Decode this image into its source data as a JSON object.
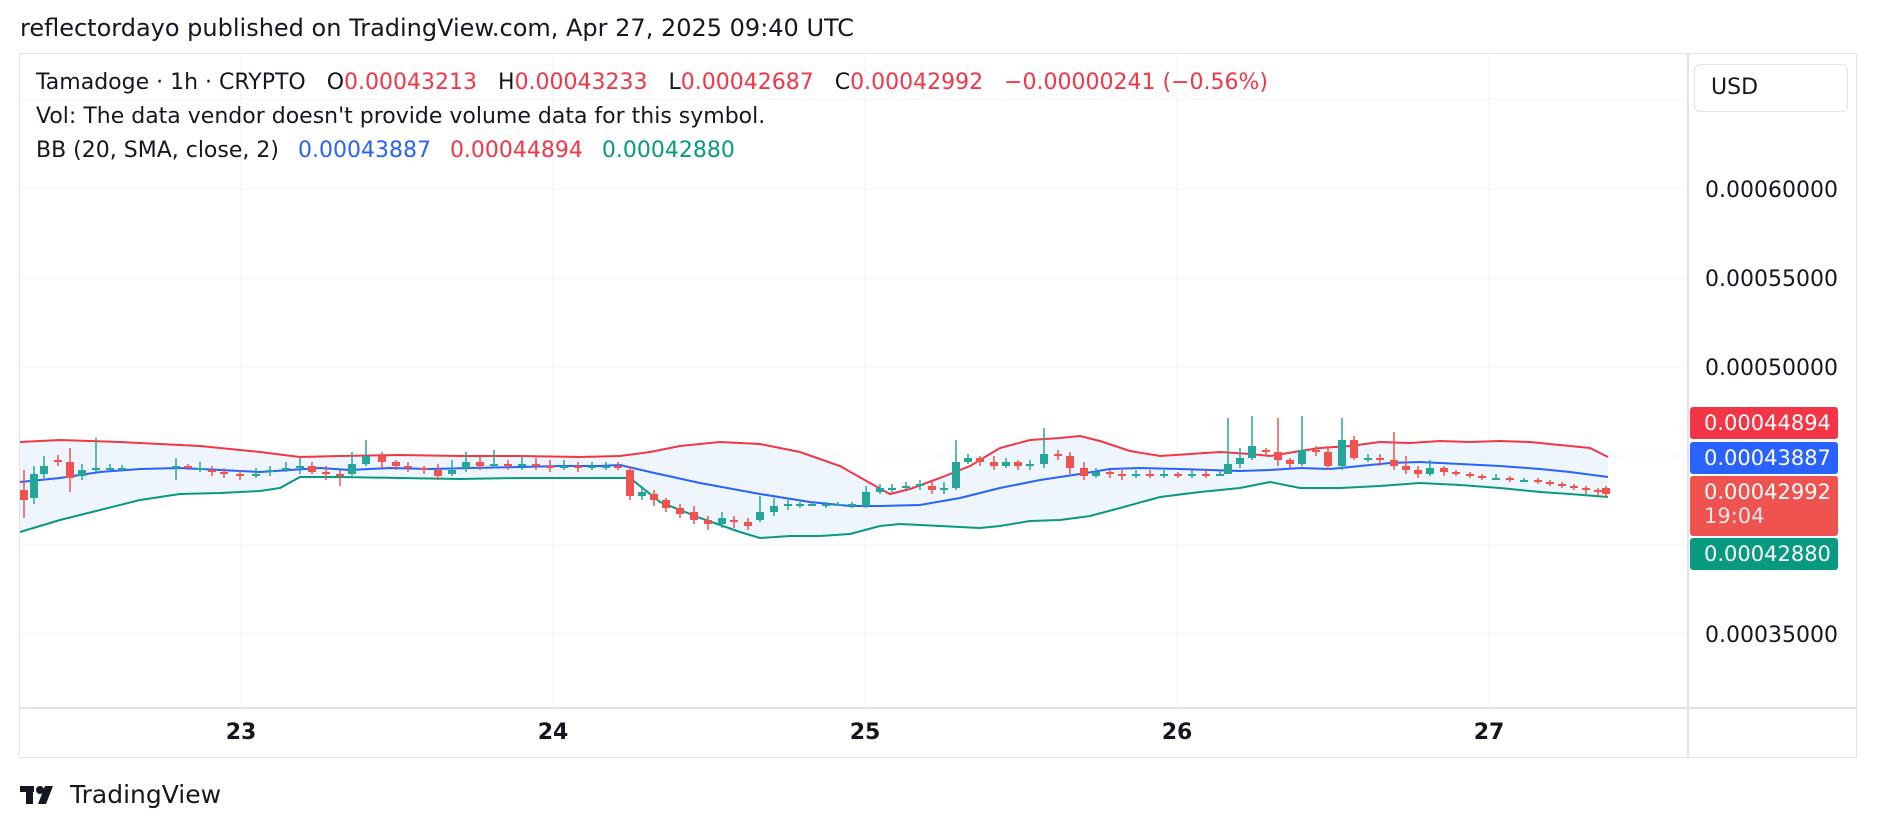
{
  "publisher_line": "reflectordayo published on TradingView.com, Apr 27, 2025 09:40 UTC",
  "legend": {
    "symbol": "Tamadoge · 1h · CRYPTO",
    "o_label": "O",
    "o_value": "0.00043213",
    "h_label": "H",
    "h_value": "0.00043233",
    "l_label": "L",
    "l_value": "0.00042687",
    "c_label": "C",
    "c_value": "0.00042992",
    "change": "−0.00000241 (−0.56%)",
    "vol_text": "Vol: The data vendor doesn't provide volume data for this symbol.",
    "bb_label": "BB (20, SMA, close, 2)",
    "bb_basis": "0.00043887",
    "bb_upper": "0.00044894",
    "bb_lower": "0.00042880"
  },
  "currency": "USD",
  "price_labels": {
    "upper": "0.00044894",
    "basis": "0.00043887",
    "last": "0.00042992",
    "countdown": "19:04",
    "lower": "0.00042880"
  },
  "brand": "TradingView",
  "colors": {
    "up": "#26a69a",
    "down": "#ef5350",
    "upper_band": "#f23645",
    "basis": "#2962ff",
    "lower_band": "#089981",
    "band_fill": "#e8f1fb"
  },
  "chart_data": {
    "type": "candlestick",
    "ylim": [
      0.00031,
      0.00068
    ],
    "y_ticks": [
      "0.00060000",
      "0.00055000",
      "0.00050000",
      "0.00035000"
    ],
    "x_ticks": [
      "23",
      "24",
      "25",
      "26",
      "27"
    ],
    "x_range_days": [
      22.3,
      27.65
    ],
    "candles": [
      [
        22.3,
        0.000425,
        0.000432,
        0.000421,
        0.00043
      ],
      [
        22.35,
        0.00043,
        0.000431,
        0.000421,
        0.000425
      ],
      [
        22.4,
        0.000424,
        0.000443,
        0.000421,
        0.000442
      ],
      [
        22.45,
        0.000442,
        0.000447,
        0.00044,
        0.000445
      ],
      [
        22.5,
        0.000445,
        0.000446,
        0.00044,
        0.000441
      ],
      [
        22.55,
        0.000441,
        0.000444,
        0.000434,
        0.000435
      ],
      [
        22.6,
        0.000435,
        0.000445,
        0.000435,
        0.000444
      ],
      [
        22.65,
        0.000444,
        0.000451,
        0.00044,
        0.000442
      ],
      [
        22.7,
        0.000442,
        0.000443,
        0.000439,
        0.00044
      ],
      [
        22.75,
        0.00044,
        0.000442,
        0.000438,
        0.000441
      ],
      [
        22.8,
        0.000441,
        0.000442,
        0.000439,
        0.00044
      ],
      [
        22.85,
        0.00044,
        0.000441,
        0.000438,
        0.000439
      ],
      [
        22.9,
        0.000439,
        0.000441,
        0.000438,
        0.00044
      ],
      [
        22.95,
        0.00044,
        0.000444,
        0.000438,
        0.000443
      ],
      [
        23.0,
        0.000443,
        0.000444,
        0.00044,
        0.000441
      ],
      [
        23.05,
        0.000441,
        0.000442,
        0.000438,
        0.000439
      ],
      [
        23.1,
        0.000439,
        0.00044,
        0.000437,
        0.000438
      ],
      [
        23.15,
        0.000438,
        0.00044,
        0.000436,
        0.000439
      ],
      [
        23.2,
        0.000439,
        0.000441,
        0.000437,
        0.000438
      ],
      [
        23.25,
        0.000438,
        0.00044,
        0.000436,
        0.000437
      ],
      [
        23.3,
        0.000437,
        0.000441,
        0.000436,
        0.00044
      ],
      [
        23.35,
        0.00044,
        0.000443,
        0.000438,
        0.000441
      ],
      [
        23.4,
        0.000441,
        0.000447,
        0.000438,
        0.000444
      ],
      [
        23.45,
        0.000444,
        0.000446,
        0.000438,
        0.000439
      ],
      [
        23.5,
        0.000439,
        0.000441,
        0.000437,
        0.00044
      ],
      [
        23.55,
        0.00044,
        0.000442,
        0.000438,
        0.000439
      ],
      [
        23.6,
        0.000439,
        0.000441,
        0.000437,
        0.000438
      ],
      [
        23.65,
        0.000438,
        0.000441,
        0.000436,
        0.00044
      ],
      [
        23.7,
        0.00044,
        0.000442,
        0.000438,
        0.000441
      ],
      [
        23.75,
        0.000441,
        0.000443,
        0.000439,
        0.00044
      ],
      [
        23.8,
        0.00044,
        0.000448,
        0.000439,
        0.000446
      ],
      [
        23.85,
        0.000446,
        0.00045,
        0.00044,
        0.000441
      ],
      [
        23.9,
        0.000441,
        0.000444,
        0.000437,
        0.000438
      ],
      [
        23.95,
        0.000438,
        0.00044,
        0.000436,
        0.000439
      ],
      [
        24.0,
        0.000439,
        0.000442,
        0.000436,
        0.000437
      ],
      [
        24.05,
        0.000437,
        0.00044,
        0.000435,
        0.000438
      ],
      [
        24.1,
        0.000438,
        0.000441,
        0.000437,
        0.00044
      ],
      [
        24.15,
        0.00044,
        0.000444,
        0.000438,
        0.000442
      ],
      [
        24.2,
        0.000442,
        0.000446,
        0.000439,
        0.00044
      ],
      [
        24.25,
        0.00044,
        0.000441,
        0.000436,
        0.000438
      ],
      [
        24.3,
        0.000438,
        0.00044,
        0.000435,
        0.000439
      ],
      [
        24.35,
        0.000439,
        0.00044,
        0.000436,
        0.000437
      ],
      [
        24.4,
        0.000437,
        0.000439,
        0.000435,
        0.000438
      ],
      [
        24.45,
        0.000438,
        0.000439,
        0.000436,
        0.000437
      ],
      [
        24.5,
        0.000437,
        0.000438,
        0.000435,
        0.000436
      ],
      [
        24.55,
        0.000436,
        0.000438,
        0.000434,
        0.000437
      ],
      [
        24.6,
        0.000437,
        0.00044,
        0.000435,
        0.000439
      ],
      [
        24.65,
        0.000439,
        0.000444,
        0.000437,
        0.000441
      ],
      [
        24.7,
        0.000441,
        0.000442,
        0.000438,
        0.000439
      ],
      [
        24.75,
        0.000439,
        0.00044,
        0.000436,
        0.000437
      ],
      [
        24.8,
        0.000437,
        0.000439,
        0.000435,
        0.000436
      ],
      [
        24.85,
        0.000436,
        0.000437,
        0.000433,
        0.000434
      ],
      [
        24.9,
        0.000434,
        0.000436,
        0.000431,
        0.000432
      ],
      [
        24.95,
        0.000432,
        0.000434,
        0.00043,
        0.000433
      ],
      [
        25.0,
        0.000433,
        0.000436,
        0.000431,
        0.000435
      ]
    ]
  }
}
